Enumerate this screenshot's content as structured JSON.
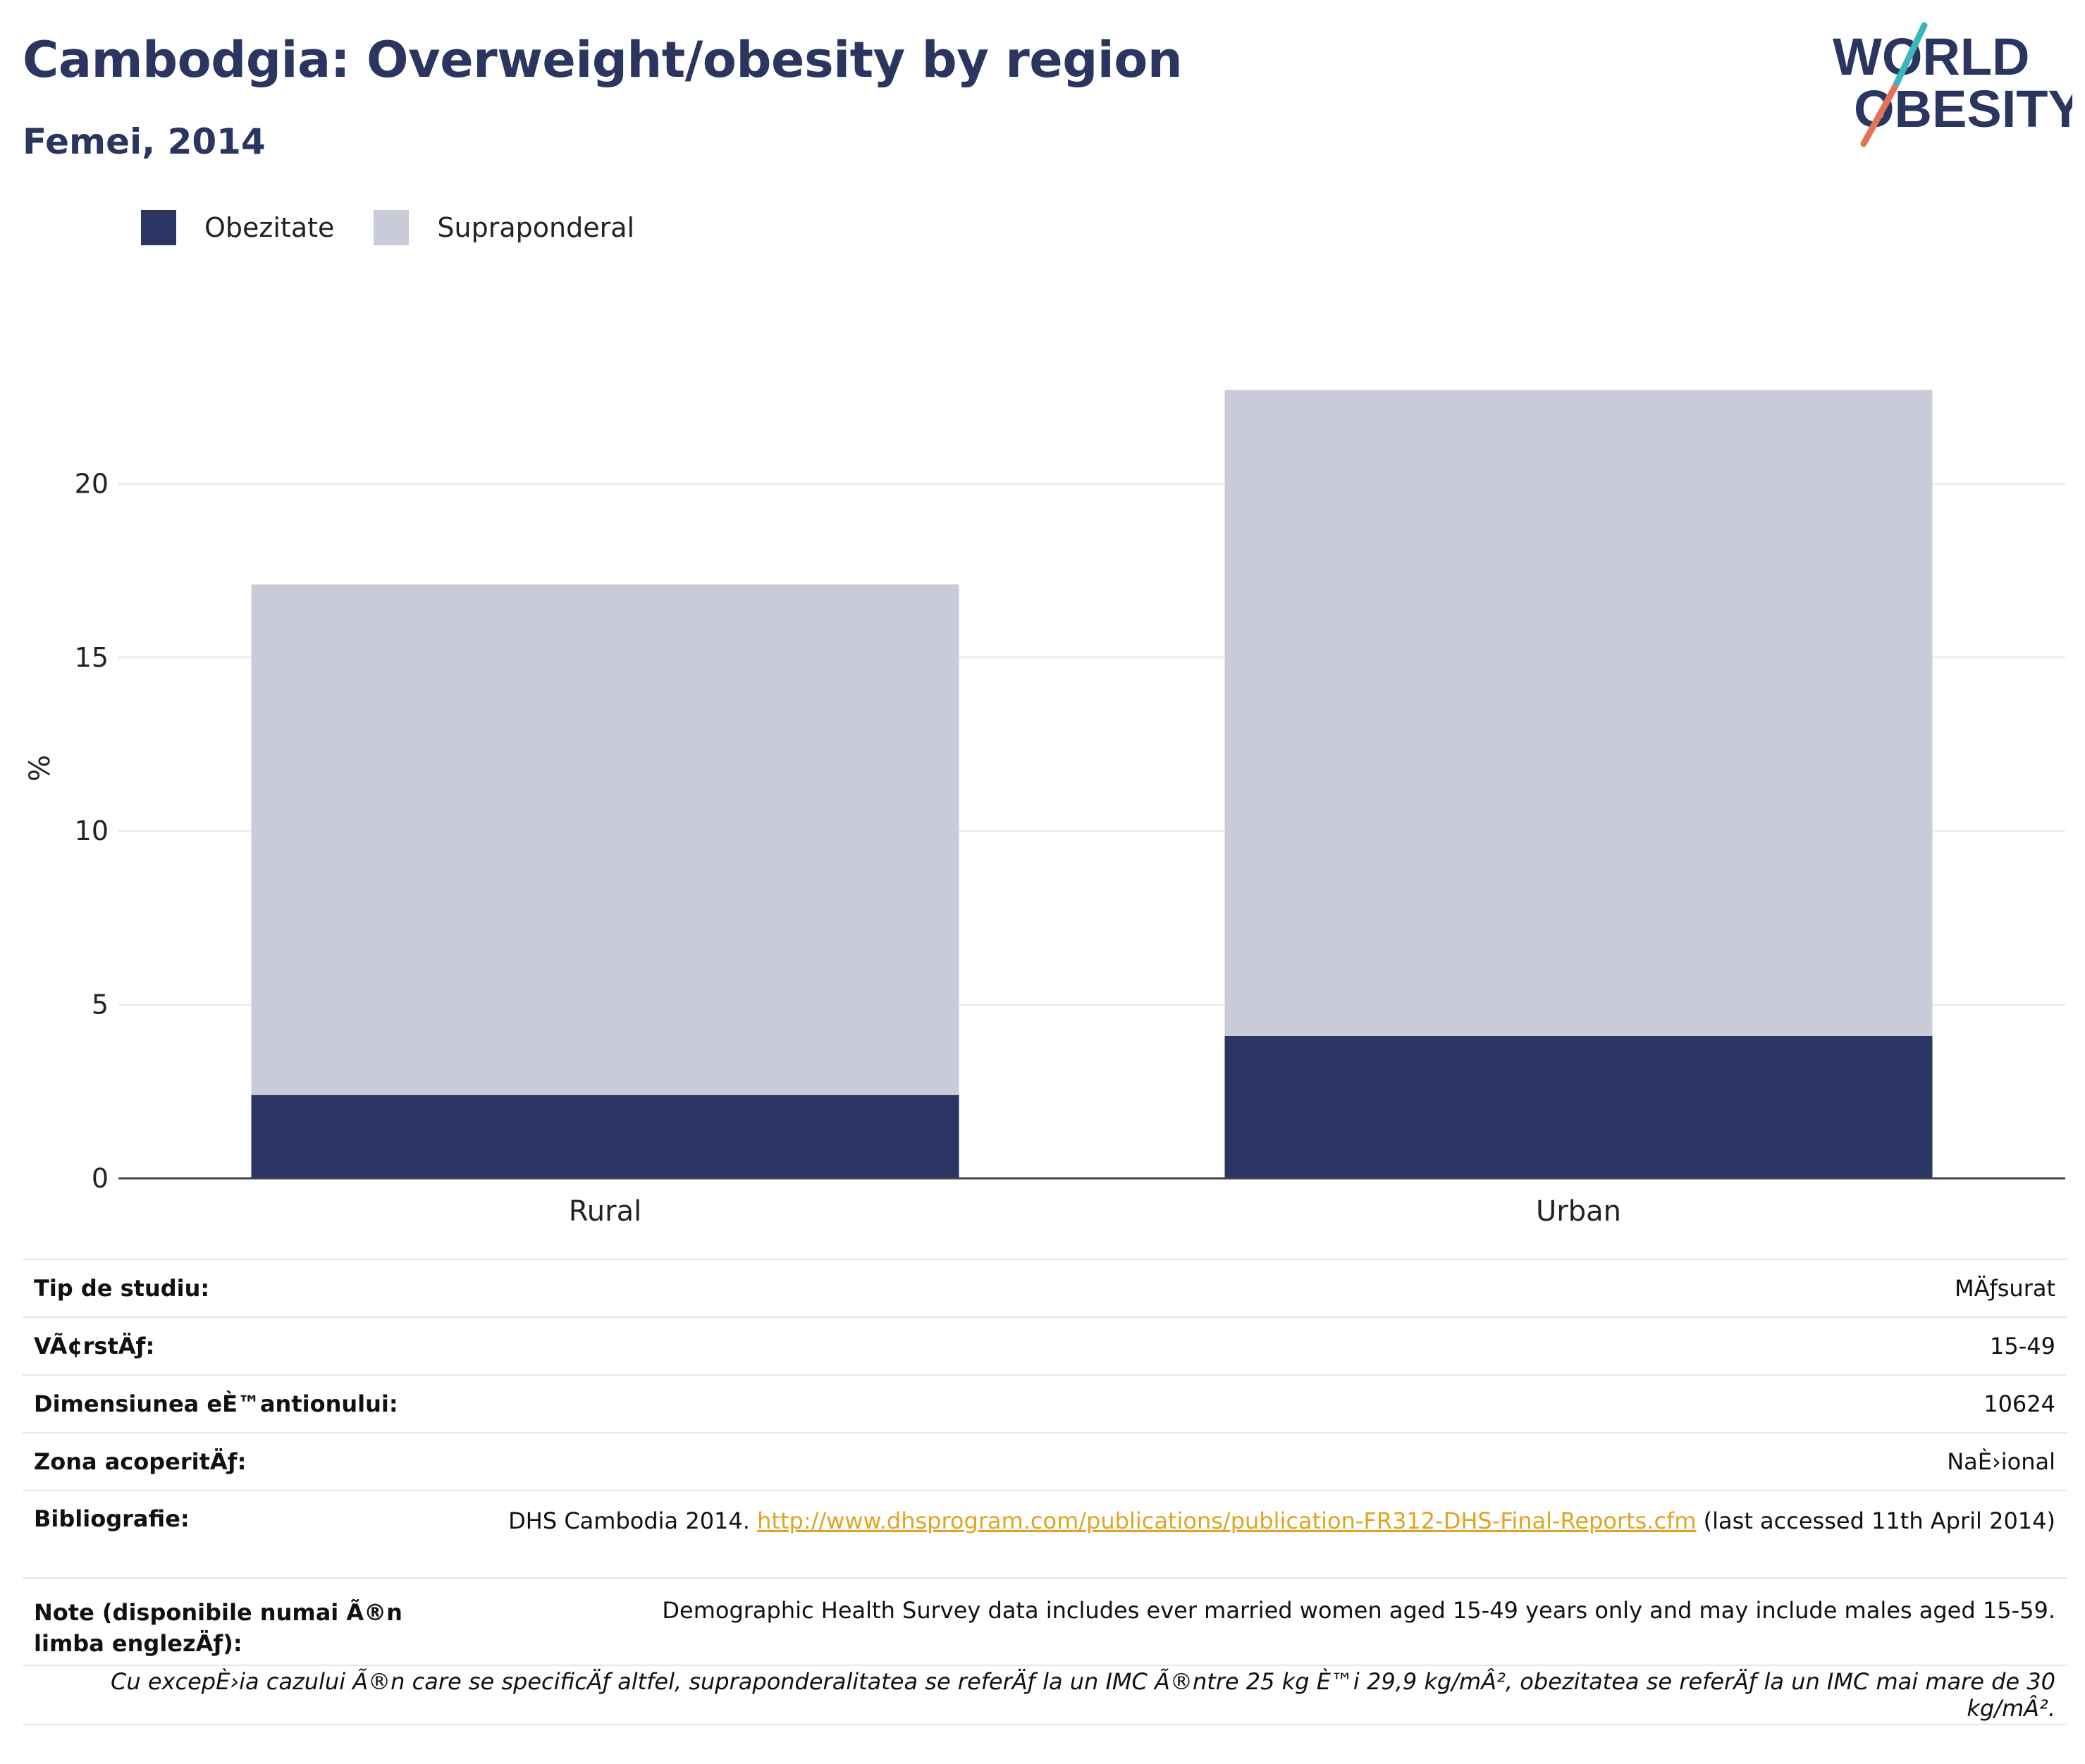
{
  "header": {
    "title": "Cambodgia: Overweight/obesity by region",
    "subtitle": "Femei, 2014"
  },
  "logo": {
    "line1": "WORLD",
    "line2": "OBESITY"
  },
  "colors": {
    "obesity": "#2a3563",
    "overweight": "#c9ccd8",
    "title": "#2a3560",
    "link": "#e0a422",
    "logo_teal": "#3bb6b9",
    "logo_coral": "#e2725b"
  },
  "legend": [
    {
      "label": "Obezitate",
      "color": "#2a3563"
    },
    {
      "label": "Supraponderal",
      "color": "#c9ccd8"
    }
  ],
  "chart_data": {
    "type": "bar",
    "stacked": true,
    "categories": [
      "Rural",
      "Urban"
    ],
    "series": [
      {
        "name": "Obezitate",
        "values": [
          2.4,
          4.1
        ]
      },
      {
        "name": "Supraponderal",
        "values": [
          14.7,
          18.6
        ]
      }
    ],
    "totals": [
      17.1,
      22.7
    ],
    "ylabel": "%",
    "ylim": [
      0,
      25
    ],
    "yticks": [
      0,
      5,
      10,
      15,
      20
    ],
    "grid": true,
    "legend_position": "top-left"
  },
  "info": {
    "rows": [
      {
        "label": "Tip de studiu:",
        "value": "MÄƒsurat"
      },
      {
        "label": "VÃ¢rstÄƒ:",
        "value": "15-49"
      },
      {
        "label": "Dimensiunea eÈ™antionului:",
        "value": "10624"
      },
      {
        "label": "Zona acoperitÄƒ:",
        "value": "NaÈ›ional"
      }
    ],
    "bibliography": {
      "label": "Bibliografie:",
      "prefix": "DHS Cambodia 2014. ",
      "link": "http://www.dhsprogram.com/publications/publication-FR312-DHS-Final-Reports.cfm",
      "suffix": " (last accessed 11th April 2014)"
    },
    "note": {
      "label": "Note (disponibile numai Ã®n limba englezÄƒ):",
      "value": "Demographic Health Survey data includes ever married women aged 15-49 years only and may include males aged 15-59."
    },
    "footnote": "Cu excepÈ›ia cazului Ã®n care se specificÄƒ altfel, supraponderalitatea se referÄƒ la un IMC Ã®ntre 25 kg È™i 29,9 kg/mÂ², obezitatea se referÄƒ la un IMC mai mare de 30 kg/mÂ²."
  }
}
